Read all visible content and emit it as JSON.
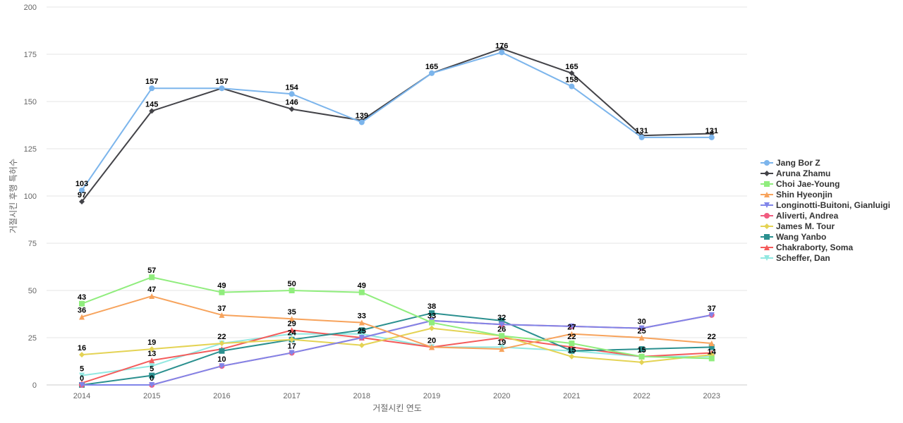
{
  "chart_data": {
    "type": "line",
    "xlabel": "거절시킨 연도",
    "ylabel": "거절시킨 후행 특허수",
    "ylim": [
      0,
      200
    ],
    "yticks": [
      0,
      25,
      50,
      75,
      100,
      125,
      150,
      175,
      200
    ],
    "grid": true,
    "legend_position": "right",
    "categories": [
      "2014",
      "2015",
      "2016",
      "2017",
      "2018",
      "2019",
      "2020",
      "2021",
      "2022",
      "2023"
    ],
    "series": [
      {
        "name": "Jang Bor Z",
        "color": "#7cb5ec",
        "marker": "circle",
        "values": [
          103,
          157,
          157,
          154,
          139,
          165,
          176,
          158,
          131,
          131
        ],
        "labels": "above"
      },
      {
        "name": "Aruna Zhamu",
        "color": "#434348",
        "marker": "diamond",
        "values": [
          97,
          145,
          157,
          146,
          140,
          165,
          178,
          165,
          132,
          133
        ],
        "labels": "none"
      },
      {
        "name": "Choi Jae-Young",
        "color": "#90ed7d",
        "marker": "square",
        "values": [
          43,
          57,
          49,
          50,
          49,
          33,
          26,
          22,
          15,
          14
        ],
        "labels": "above"
      },
      {
        "name": "Shin Hyeonjin",
        "color": "#f7a35c",
        "marker": "triangle",
        "values": [
          36,
          47,
          37,
          35,
          33,
          20,
          19,
          27,
          25,
          22
        ],
        "labels": "above"
      },
      {
        "name": "Longinotti-Buitoni, Gianluigi",
        "color": "#8085e9",
        "marker": "triangle-down",
        "values": [
          0,
          0,
          10,
          17,
          25,
          34,
          32,
          31,
          30,
          37
        ],
        "labels": "none"
      },
      {
        "name": "Aliverti, Andrea",
        "color": "#f15c80",
        "marker": "circle",
        "values": [
          0,
          0,
          10,
          17,
          25,
          34,
          32,
          31,
          30,
          37
        ],
        "labels": "above"
      },
      {
        "name": "James M. Tour",
        "color": "#e4d354",
        "marker": "diamond",
        "values": [
          16,
          19,
          22,
          24,
          21,
          30,
          26,
          15,
          12,
          16
        ],
        "labels": "none"
      },
      {
        "name": "Wang Yanbo",
        "color": "#2b908f",
        "marker": "square",
        "values": [
          0,
          5,
          18,
          24,
          29,
          38,
          34,
          18,
          19,
          20
        ],
        "labels": "none"
      },
      {
        "name": "Chakraborty, Soma",
        "color": "#f45b5b",
        "marker": "triangle",
        "values": [
          1,
          13,
          19,
          29,
          25,
          20,
          25,
          20,
          15,
          17
        ],
        "labels": "none"
      },
      {
        "name": "Scheffer, Dan",
        "color": "#91e8e1",
        "marker": "triangle-down",
        "values": [
          5,
          10,
          22,
          27,
          27,
          20,
          20,
          18,
          15,
          15
        ],
        "labels": "none"
      }
    ],
    "data_labels": [
      {
        "category": "2014",
        "value": 103,
        "text": "103"
      },
      {
        "category": "2014",
        "value": 97,
        "text": "97"
      },
      {
        "category": "2014",
        "value": 43,
        "text": "43"
      },
      {
        "category": "2014",
        "value": 36,
        "text": "36"
      },
      {
        "category": "2014",
        "value": 16,
        "text": "16"
      },
      {
        "category": "2014",
        "value": 5,
        "text": "5"
      },
      {
        "category": "2014",
        "value": 0,
        "text": "0"
      },
      {
        "category": "2015",
        "value": 157,
        "text": "157"
      },
      {
        "category": "2015",
        "value": 145,
        "text": "145"
      },
      {
        "category": "2015",
        "value": 57,
        "text": "57"
      },
      {
        "category": "2015",
        "value": 47,
        "text": "47"
      },
      {
        "category": "2015",
        "value": 19,
        "text": "19"
      },
      {
        "category": "2015",
        "value": 13,
        "text": "13"
      },
      {
        "category": "2015",
        "value": 5,
        "text": "5"
      },
      {
        "category": "2015",
        "value": 0,
        "text": "0"
      },
      {
        "category": "2016",
        "value": 157,
        "text": "157"
      },
      {
        "category": "2016",
        "value": 49,
        "text": "49"
      },
      {
        "category": "2016",
        "value": 37,
        "text": "37"
      },
      {
        "category": "2016",
        "value": 22,
        "text": "22"
      },
      {
        "category": "2016",
        "value": 10,
        "text": "10"
      },
      {
        "category": "2017",
        "value": 154,
        "text": "154"
      },
      {
        "category": "2017",
        "value": 146,
        "text": "146"
      },
      {
        "category": "2017",
        "value": 50,
        "text": "50"
      },
      {
        "category": "2017",
        "value": 35,
        "text": "35"
      },
      {
        "category": "2017",
        "value": 29,
        "text": "29"
      },
      {
        "category": "2017",
        "value": 24,
        "text": "24"
      },
      {
        "category": "2017",
        "value": 17,
        "text": "17"
      },
      {
        "category": "2018",
        "value": 139,
        "text": "139"
      },
      {
        "category": "2018",
        "value": 49,
        "text": "49"
      },
      {
        "category": "2018",
        "value": 33,
        "text": "33"
      },
      {
        "category": "2018",
        "value": 25,
        "text": "25"
      },
      {
        "category": "2019",
        "value": 165,
        "text": "165"
      },
      {
        "category": "2019",
        "value": 38,
        "text": "38"
      },
      {
        "category": "2019",
        "value": 33,
        "text": "33"
      },
      {
        "category": "2019",
        "value": 20,
        "text": "20"
      },
      {
        "category": "2020",
        "value": 176,
        "text": "176"
      },
      {
        "category": "2020",
        "value": 32,
        "text": "32"
      },
      {
        "category": "2020",
        "value": 26,
        "text": "26"
      },
      {
        "category": "2020",
        "value": 19,
        "text": "19"
      },
      {
        "category": "2021",
        "value": 165,
        "text": "165"
      },
      {
        "category": "2021",
        "value": 158,
        "text": "158"
      },
      {
        "category": "2021",
        "value": 27,
        "text": "27"
      },
      {
        "category": "2021",
        "value": 22,
        "text": "22"
      },
      {
        "category": "2021",
        "value": 15,
        "text": "15"
      },
      {
        "category": "2022",
        "value": 131,
        "text": "131"
      },
      {
        "category": "2022",
        "value": 30,
        "text": "30"
      },
      {
        "category": "2022",
        "value": 25,
        "text": "25"
      },
      {
        "category": "2022",
        "value": 15,
        "text": "15"
      },
      {
        "category": "2023",
        "value": 131,
        "text": "131"
      },
      {
        "category": "2023",
        "value": 37,
        "text": "37"
      },
      {
        "category": "2023",
        "value": 22,
        "text": "22"
      },
      {
        "category": "2023",
        "value": 14,
        "text": "14"
      }
    ]
  }
}
